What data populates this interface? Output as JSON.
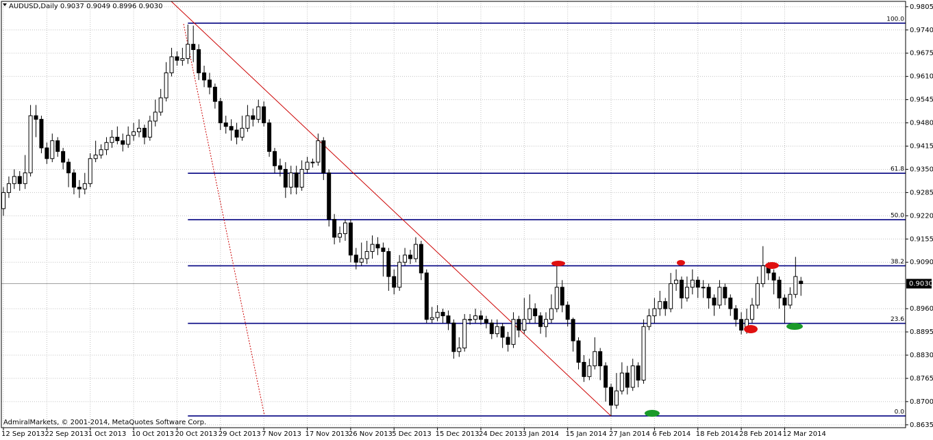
{
  "chart_data": {
    "type": "candlestick",
    "symbol": "AUDUSD,Daily",
    "copyright": "AdmiralMarkets, © 2001-2014, MetaQuotes Software Corp.",
    "categories": [
      "12 Sep 2013",
      null,
      null,
      null,
      null,
      null,
      null,
      null,
      "22 Sep 2013",
      null,
      null,
      null,
      null,
      null,
      null,
      null,
      "1 Oct 2013",
      null,
      null,
      null,
      null,
      null,
      null,
      null,
      "10 Oct 2013",
      null,
      null,
      null,
      null,
      null,
      null,
      null,
      "20 Oct 2013",
      null,
      null,
      null,
      null,
      null,
      null,
      null,
      "29 Oct 2013",
      null,
      null,
      null,
      null,
      null,
      null,
      null,
      "7 Nov 2013",
      null,
      null,
      null,
      null,
      null,
      null,
      null,
      "17 Nov 2013",
      null,
      null,
      null,
      null,
      null,
      null,
      null,
      "26 Nov 2013",
      null,
      null,
      null,
      null,
      null,
      null,
      null,
      "5 Dec 2013",
      null,
      null,
      null,
      null,
      null,
      null,
      null,
      "15 Dec 2013",
      null,
      null,
      null,
      null,
      null,
      null,
      null,
      "24 Dec 2013",
      null,
      null,
      null,
      null,
      null,
      null,
      null,
      "3 Jan 2014",
      null,
      null,
      null,
      null,
      null,
      null,
      null,
      "15 Jan 2014",
      null,
      null,
      null,
      null,
      null,
      null,
      null,
      "27 Jan 2014",
      null,
      null,
      null,
      null,
      null,
      null,
      null,
      "6 Feb 2014",
      null,
      null,
      null,
      null,
      null,
      null,
      null,
      "18 Feb 2014",
      null,
      null,
      null,
      null,
      null,
      null,
      null,
      "28 Feb 2014",
      null,
      null,
      null,
      null,
      null,
      null,
      null,
      "12 Mar 2014",
      null,
      null,
      null
    ],
    "open": [
      0.924,
      0.9285,
      0.931,
      0.933,
      0.931,
      0.934,
      0.95,
      0.949,
      0.941,
      0.938,
      0.943,
      0.94,
      0.937,
      0.934,
      0.93,
      0.9295,
      0.931,
      0.938,
      0.939,
      0.9405,
      0.9425,
      0.944,
      0.943,
      0.942,
      0.9445,
      0.9455,
      0.9465,
      0.944,
      0.9485,
      0.951,
      0.955,
      0.962,
      0.9665,
      0.9655,
      0.966,
      0.97,
      0.9685,
      0.962,
      0.96,
      0.958,
      0.954,
      0.948,
      0.947,
      0.946,
      0.944,
      0.9465,
      0.95,
      0.949,
      0.9525,
      0.948,
      0.94,
      0.936,
      0.935,
      0.93,
      0.934,
      0.93,
      0.935,
      0.937,
      0.937,
      0.943,
      0.934,
      0.921,
      0.916,
      0.917,
      0.92,
      0.911,
      0.909,
      0.91,
      0.912,
      0.914,
      0.913,
      0.912,
      0.905,
      0.902,
      0.909,
      0.911,
      0.91,
      0.914,
      0.906,
      0.893,
      0.8935,
      0.895,
      0.894,
      0.892,
      0.884,
      0.885,
      0.893,
      0.893,
      0.894,
      0.893,
      0.892,
      0.889,
      0.891,
      0.888,
      0.886,
      0.893,
      0.89,
      0.893,
      0.896,
      0.894,
      0.891,
      0.893,
      0.896,
      0.902,
      0.897,
      0.893,
      0.887,
      0.881,
      0.877,
      0.88,
      0.884,
      0.88,
      0.874,
      0.869,
      0.873,
      0.878,
      0.874,
      0.88,
      0.876,
      0.891,
      0.894,
      0.896,
      0.898,
      0.896,
      0.903,
      0.904,
      0.899,
      0.902,
      0.904,
      0.902,
      0.902,
      0.899,
      0.897,
      0.902,
      0.899,
      0.896,
      0.893,
      0.89,
      0.893,
      0.897,
      0.903,
      0.908,
      0.906,
      0.904,
      0.899,
      0.897,
      0.9,
      0.9037
    ],
    "high": [
      0.93,
      0.933,
      0.935,
      0.9345,
      0.939,
      0.953,
      0.953,
      0.95,
      0.9425,
      0.945,
      0.944,
      0.941,
      0.938,
      0.935,
      0.932,
      0.934,
      0.9395,
      0.943,
      0.942,
      0.944,
      0.946,
      0.947,
      0.945,
      0.947,
      0.948,
      0.949,
      0.9475,
      0.95,
      0.9545,
      0.9575,
      0.965,
      0.969,
      0.968,
      0.969,
      0.9755,
      0.9752,
      0.97,
      0.964,
      0.962,
      0.959,
      0.955,
      0.95,
      0.949,
      0.948,
      0.95,
      0.953,
      0.952,
      0.9545,
      0.954,
      0.949,
      0.941,
      0.938,
      0.937,
      0.936,
      0.936,
      0.9375,
      0.9385,
      0.938,
      0.945,
      0.944,
      0.935,
      0.9225,
      0.919,
      0.921,
      0.921,
      0.913,
      0.9145,
      0.915,
      0.9165,
      0.916,
      0.9145,
      0.913,
      0.907,
      0.911,
      0.913,
      0.9125,
      0.916,
      0.915,
      0.907,
      0.8965,
      0.897,
      0.896,
      0.8955,
      0.893,
      0.888,
      0.8945,
      0.8945,
      0.896,
      0.8955,
      0.894,
      0.893,
      0.893,
      0.892,
      0.8895,
      0.895,
      0.894,
      0.899,
      0.9,
      0.8975,
      0.895,
      0.895,
      0.9,
      0.908,
      0.904,
      0.898,
      0.8935,
      0.888,
      0.883,
      0.882,
      0.888,
      0.885,
      0.881,
      0.875,
      0.878,
      0.881,
      0.88,
      0.882,
      0.881,
      0.893,
      0.896,
      0.899,
      0.901,
      0.899,
      0.906,
      0.907,
      0.905,
      0.905,
      0.907,
      0.905,
      0.904,
      0.903,
      0.9,
      0.904,
      0.903,
      0.9,
      0.897,
      0.895,
      0.896,
      0.899,
      0.905,
      0.9135,
      0.909,
      0.907,
      0.905,
      0.9,
      0.902,
      0.9105,
      0.9049
    ],
    "low": [
      0.922,
      0.927,
      0.9295,
      0.929,
      0.9295,
      0.933,
      0.944,
      0.9395,
      0.9365,
      0.937,
      0.9385,
      0.935,
      0.93,
      0.928,
      0.927,
      0.928,
      0.93,
      0.937,
      0.938,
      0.939,
      0.941,
      0.942,
      0.94,
      0.941,
      0.943,
      0.944,
      0.942,
      0.943,
      0.947,
      0.95,
      0.954,
      0.961,
      0.964,
      0.964,
      0.9645,
      0.965,
      0.96,
      0.958,
      0.956,
      0.952,
      0.946,
      0.945,
      0.943,
      0.942,
      0.943,
      0.9455,
      0.947,
      0.948,
      0.947,
      0.9385,
      0.934,
      0.933,
      0.927,
      0.928,
      0.928,
      0.929,
      0.934,
      0.9355,
      0.936,
      0.932,
      0.919,
      0.914,
      0.9145,
      0.915,
      0.909,
      0.907,
      0.908,
      0.9085,
      0.91,
      0.911,
      0.905,
      0.901,
      0.9,
      0.901,
      0.908,
      0.9085,
      0.909,
      0.904,
      0.892,
      0.892,
      0.8925,
      0.892,
      0.89,
      0.882,
      0.8825,
      0.884,
      0.8915,
      0.892,
      0.8915,
      0.8905,
      0.8875,
      0.888,
      0.885,
      0.884,
      0.885,
      0.888,
      0.889,
      0.892,
      0.892,
      0.889,
      0.888,
      0.892,
      0.895,
      0.895,
      0.891,
      0.884,
      0.879,
      0.8755,
      0.876,
      0.879,
      0.876,
      0.87,
      0.866,
      0.868,
      0.872,
      0.872,
      0.873,
      0.874,
      0.875,
      0.89,
      0.892,
      0.894,
      0.894,
      0.895,
      0.901,
      0.896,
      0.898,
      0.9,
      0.899,
      0.899,
      0.896,
      0.894,
      0.896,
      0.897,
      0.894,
      0.891,
      0.8888,
      0.889,
      0.892,
      0.896,
      0.902,
      0.904,
      0.9,
      0.896,
      0.892,
      0.896,
      0.899,
      0.8996
    ],
    "close": [
      0.9285,
      0.931,
      0.933,
      0.931,
      0.934,
      0.95,
      0.949,
      0.941,
      0.938,
      0.943,
      0.94,
      0.937,
      0.934,
      0.93,
      0.9295,
      0.931,
      0.938,
      0.939,
      0.9405,
      0.9425,
      0.944,
      0.943,
      0.942,
      0.9445,
      0.9455,
      0.9465,
      0.944,
      0.9485,
      0.951,
      0.955,
      0.962,
      0.9665,
      0.9655,
      0.966,
      0.97,
      0.9685,
      0.962,
      0.96,
      0.958,
      0.954,
      0.948,
      0.947,
      0.946,
      0.944,
      0.9465,
      0.95,
      0.949,
      0.9525,
      0.948,
      0.94,
      0.936,
      0.935,
      0.93,
      0.934,
      0.93,
      0.935,
      0.937,
      0.937,
      0.943,
      0.934,
      0.921,
      0.916,
      0.917,
      0.92,
      0.911,
      0.909,
      0.91,
      0.912,
      0.914,
      0.913,
      0.912,
      0.905,
      0.902,
      0.909,
      0.911,
      0.91,
      0.914,
      0.906,
      0.893,
      0.8935,
      0.895,
      0.894,
      0.892,
      0.884,
      0.885,
      0.893,
      0.893,
      0.894,
      0.893,
      0.892,
      0.889,
      0.891,
      0.888,
      0.886,
      0.893,
      0.89,
      0.893,
      0.896,
      0.894,
      0.891,
      0.893,
      0.896,
      0.902,
      0.897,
      0.893,
      0.887,
      0.881,
      0.877,
      0.88,
      0.884,
      0.88,
      0.874,
      0.869,
      0.873,
      0.878,
      0.874,
      0.88,
      0.876,
      0.891,
      0.894,
      0.896,
      0.898,
      0.896,
      0.903,
      0.904,
      0.899,
      0.902,
      0.904,
      0.902,
      0.902,
      0.899,
      0.897,
      0.902,
      0.899,
      0.896,
      0.893,
      0.89,
      0.893,
      0.897,
      0.903,
      0.908,
      0.906,
      0.904,
      0.899,
      0.897,
      0.9,
      0.905,
      0.903
    ],
    "current_price": {
      "value": 0.903,
      "label": "0.9030"
    },
    "ylim": [
      0.8627,
      0.982
    ],
    "yticks": [
      0.9805,
      {
        "value": 0.974,
        "label": "0.9740"
      },
      0.9675,
      {
        "value": 0.961,
        "label": "0.9610"
      },
      0.9545,
      {
        "value": 0.948,
        "label": "0.9480"
      },
      0.9415,
      {
        "value": 0.935,
        "label": "0.9350"
      },
      0.9285,
      {
        "value": 0.922,
        "label": "0.9220"
      },
      0.9155,
      {
        "value": 0.909,
        "label": "0.9090"
      },
      {
        "value": 0.896,
        "label": "0.8960"
      },
      0.8895,
      {
        "value": 0.883,
        "label": "0.8830"
      },
      0.8765,
      {
        "value": 0.87,
        "label": "0.8700"
      },
      0.8635
    ],
    "grid": true,
    "bull_color": "#ffffff",
    "bear_color": "#000000",
    "fibonacci": {
      "color": "#000080",
      "start_index": 34,
      "levels": [
        {
          "label": "100.0",
          "price": 0.9759
        },
        {
          "label": "61.8",
          "price": 0.9339
        },
        {
          "label": "50.0",
          "price": 0.9209
        },
        {
          "label": "38.2",
          "price": 0.908
        },
        {
          "label": "23.6",
          "price": 0.8919
        },
        {
          "label": "0.0",
          "price": 0.866
        }
      ]
    }
  }
}
